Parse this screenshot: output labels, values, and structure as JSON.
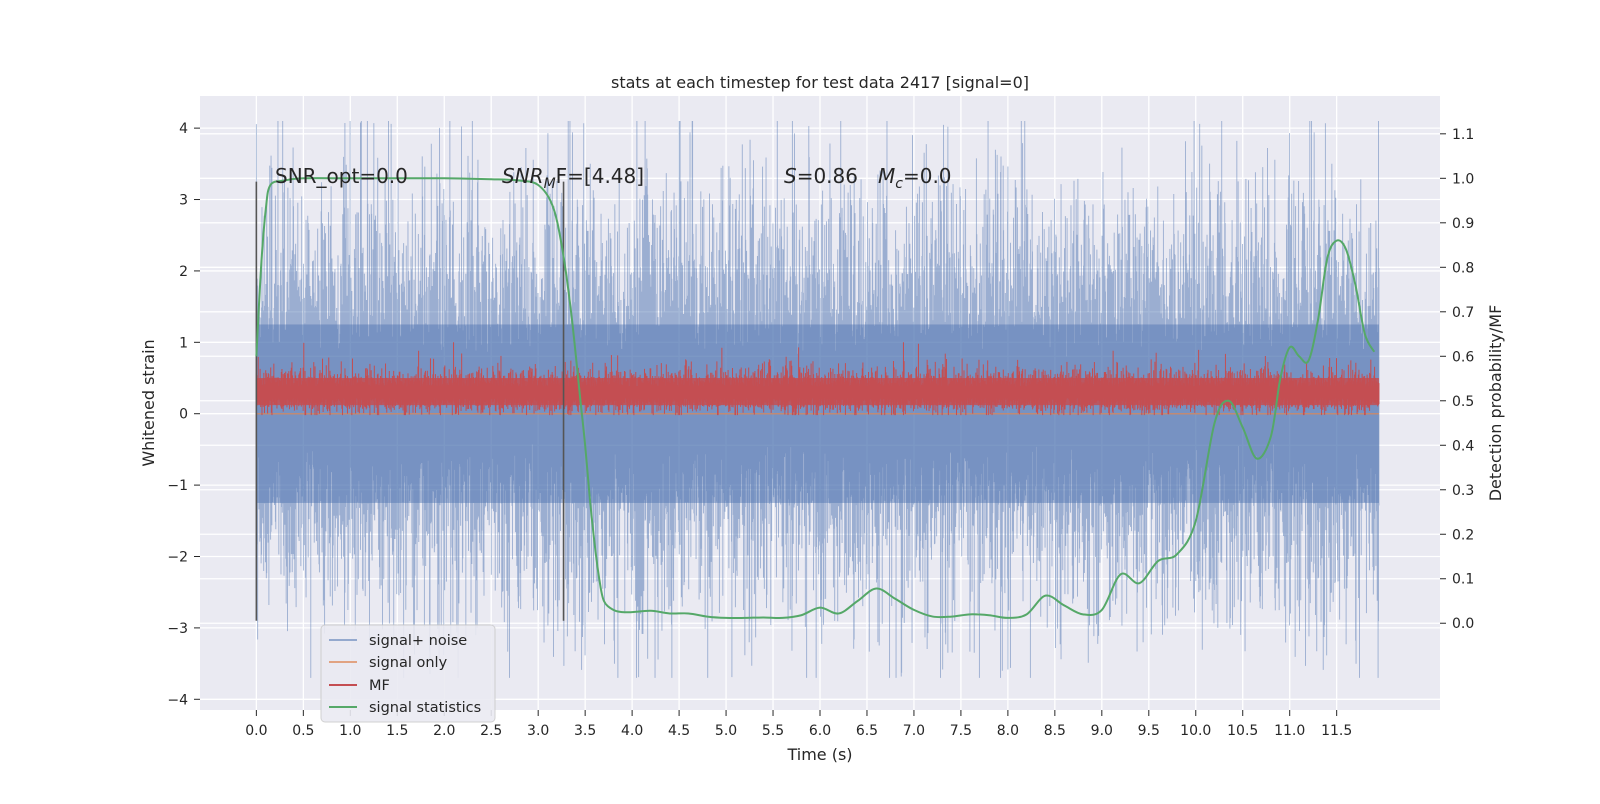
{
  "chart_data": {
    "type": "line",
    "title": "stats at each timestep for test data 2417 [signal=0]",
    "xlabel": "Time (s)",
    "ylabel_left": "Whitened strain",
    "ylabel_right": "Detection probability/MF",
    "xlim": [
      -0.6,
      12.6
    ],
    "ylim_left": [
      -4.15,
      4.45
    ],
    "ylim_right": [
      -0.195,
      1.185
    ],
    "x_ticks": [
      "0.0",
      "0.5",
      "1.0",
      "1.5",
      "2.0",
      "2.5",
      "3.0",
      "3.5",
      "4.0",
      "4.5",
      "5.0",
      "5.5",
      "6.0",
      "6.5",
      "7.0",
      "7.5",
      "8.0",
      "8.5",
      "9.0",
      "9.5",
      "10.0",
      "10.5",
      "11.0",
      "11.5"
    ],
    "y_ticks_left": [
      "4",
      "3",
      "2",
      "1",
      "0",
      "−1",
      "−2",
      "−3",
      "−4"
    ],
    "y_ticks_right": [
      "1.1",
      "1.0",
      "0.9",
      "0.8",
      "0.7",
      "0.6",
      "0.5",
      "0.4",
      "0.3",
      "0.2",
      "0.1",
      "0.0"
    ],
    "grid": true,
    "legend_position": "lower-left",
    "annotations": {
      "snr_opt": "SNR_opt=0.0",
      "snr_mf_main": "SNR",
      "snr_mf_sub": "M",
      "snr_mf_rest": "F=[4.48]",
      "s_var": "S",
      "s_rest": "=0.86",
      "mc_var": "M",
      "mc_sub": "c",
      "mc_rest": "=0.0"
    },
    "vertical_markers": [
      0.0,
      3.27
    ],
    "series": [
      {
        "name": "signal+ noise",
        "axis": "left",
        "color": "#4c72b0",
        "description_envelope": "noise band roughly between -3.7 and 4.1, typical extent -2.3 to 2.5",
        "x_range": [
          0.0,
          11.95
        ]
      },
      {
        "name": "signal only",
        "axis": "left",
        "color": "#dd8452",
        "x": [
          0.0,
          11.95
        ],
        "values": [
          0.0,
          0.0
        ]
      },
      {
        "name": "MF",
        "axis": "left",
        "color": "#c44e52",
        "band_range": [
          0.0,
          0.8
        ],
        "x_range": [
          0.0,
          11.95
        ]
      },
      {
        "name": "signal statistics",
        "axis": "right",
        "color": "#55a868",
        "x": [
          0.0,
          0.05,
          0.1,
          0.15,
          0.3,
          0.5,
          1.0,
          1.5,
          2.0,
          2.5,
          2.8,
          3.0,
          3.15,
          3.25,
          3.35,
          3.45,
          3.5,
          3.55,
          3.6,
          3.65,
          3.7,
          3.8,
          3.9,
          4.0,
          4.2,
          4.4,
          4.6,
          4.8,
          5.0,
          5.2,
          5.4,
          5.6,
          5.8,
          6.0,
          6.2,
          6.4,
          6.6,
          6.8,
          7.0,
          7.2,
          7.4,
          7.6,
          7.8,
          8.0,
          8.2,
          8.4,
          8.6,
          8.8,
          9.0,
          9.2,
          9.4,
          9.6,
          9.8,
          10.0,
          10.2,
          10.35,
          10.5,
          10.65,
          10.8,
          10.9,
          11.0,
          11.1,
          11.2,
          11.3,
          11.4,
          11.5,
          11.6,
          11.7,
          11.8,
          11.9
        ],
        "values": [
          0.6,
          0.8,
          0.93,
          0.985,
          0.995,
          1.0,
          1.0,
          1.0,
          1.0,
          0.998,
          0.995,
          0.985,
          0.94,
          0.85,
          0.7,
          0.5,
          0.4,
          0.28,
          0.18,
          0.1,
          0.05,
          0.03,
          0.025,
          0.025,
          0.028,
          0.022,
          0.022,
          0.015,
          0.012,
          0.012,
          0.013,
          0.012,
          0.018,
          0.035,
          0.022,
          0.05,
          0.078,
          0.055,
          0.03,
          0.015,
          0.015,
          0.02,
          0.018,
          0.012,
          0.02,
          0.062,
          0.04,
          0.02,
          0.03,
          0.11,
          0.09,
          0.14,
          0.155,
          0.23,
          0.45,
          0.5,
          0.44,
          0.37,
          0.42,
          0.55,
          0.62,
          0.6,
          0.59,
          0.68,
          0.82,
          0.86,
          0.84,
          0.76,
          0.65,
          0.61
        ]
      }
    ]
  }
}
